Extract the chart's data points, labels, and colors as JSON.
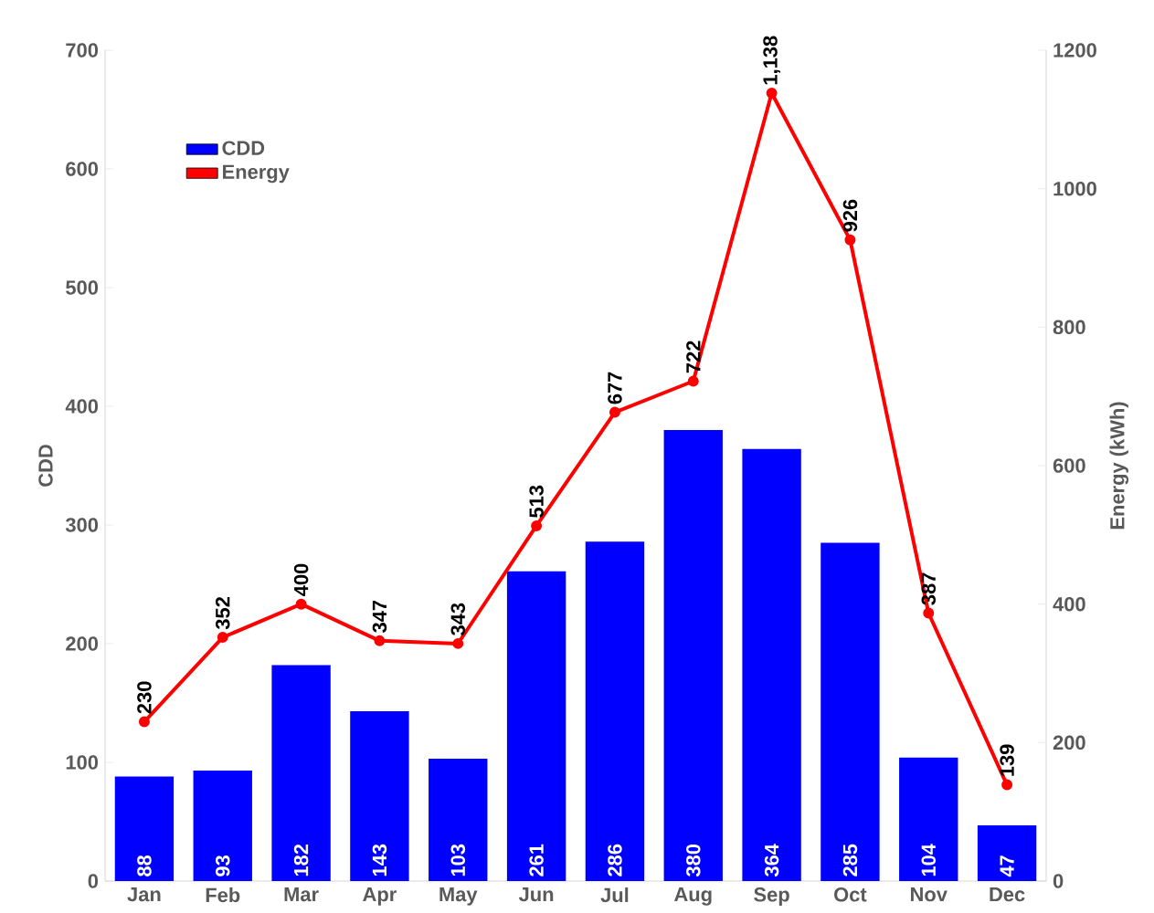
{
  "chart_data": {
    "type": "bar",
    "categories": [
      "Jan",
      "Feb",
      "Mar",
      "Apr",
      "May",
      "Jun",
      "Jul",
      "Aug",
      "Sep",
      "Oct",
      "Nov",
      "Dec"
    ],
    "ylabel": "CDD",
    "y2label": "Energy (kWh)",
    "ylim": [
      0,
      700
    ],
    "yticks": [
      0,
      100,
      200,
      300,
      400,
      500,
      600,
      700
    ],
    "y2lim": [
      0,
      1200
    ],
    "y2ticks": [
      0,
      200,
      400,
      600,
      800,
      1000,
      1200
    ],
    "legend": "top left",
    "series": [
      {
        "name": "CDD",
        "color": "#0000ff",
        "values": [
          88,
          93,
          182,
          143,
          103,
          261,
          286,
          380,
          364,
          285,
          104,
          47
        ],
        "value_labels": [
          "88",
          "93",
          "182",
          "143",
          "103",
          "261",
          "286",
          "380",
          "364",
          "285",
          "104",
          "47"
        ]
      },
      {
        "name": "Energy",
        "type": "line",
        "axis": "y2",
        "color": "#ff0000",
        "marker": "circle",
        "values": [
          230,
          352,
          400,
          347,
          343,
          513,
          677,
          722,
          1138,
          926,
          387,
          139
        ],
        "value_labels": [
          "230",
          "352",
          "400",
          "347",
          "343",
          "513",
          "677",
          "722",
          "1,138",
          "926",
          "387",
          "139"
        ]
      }
    ]
  }
}
